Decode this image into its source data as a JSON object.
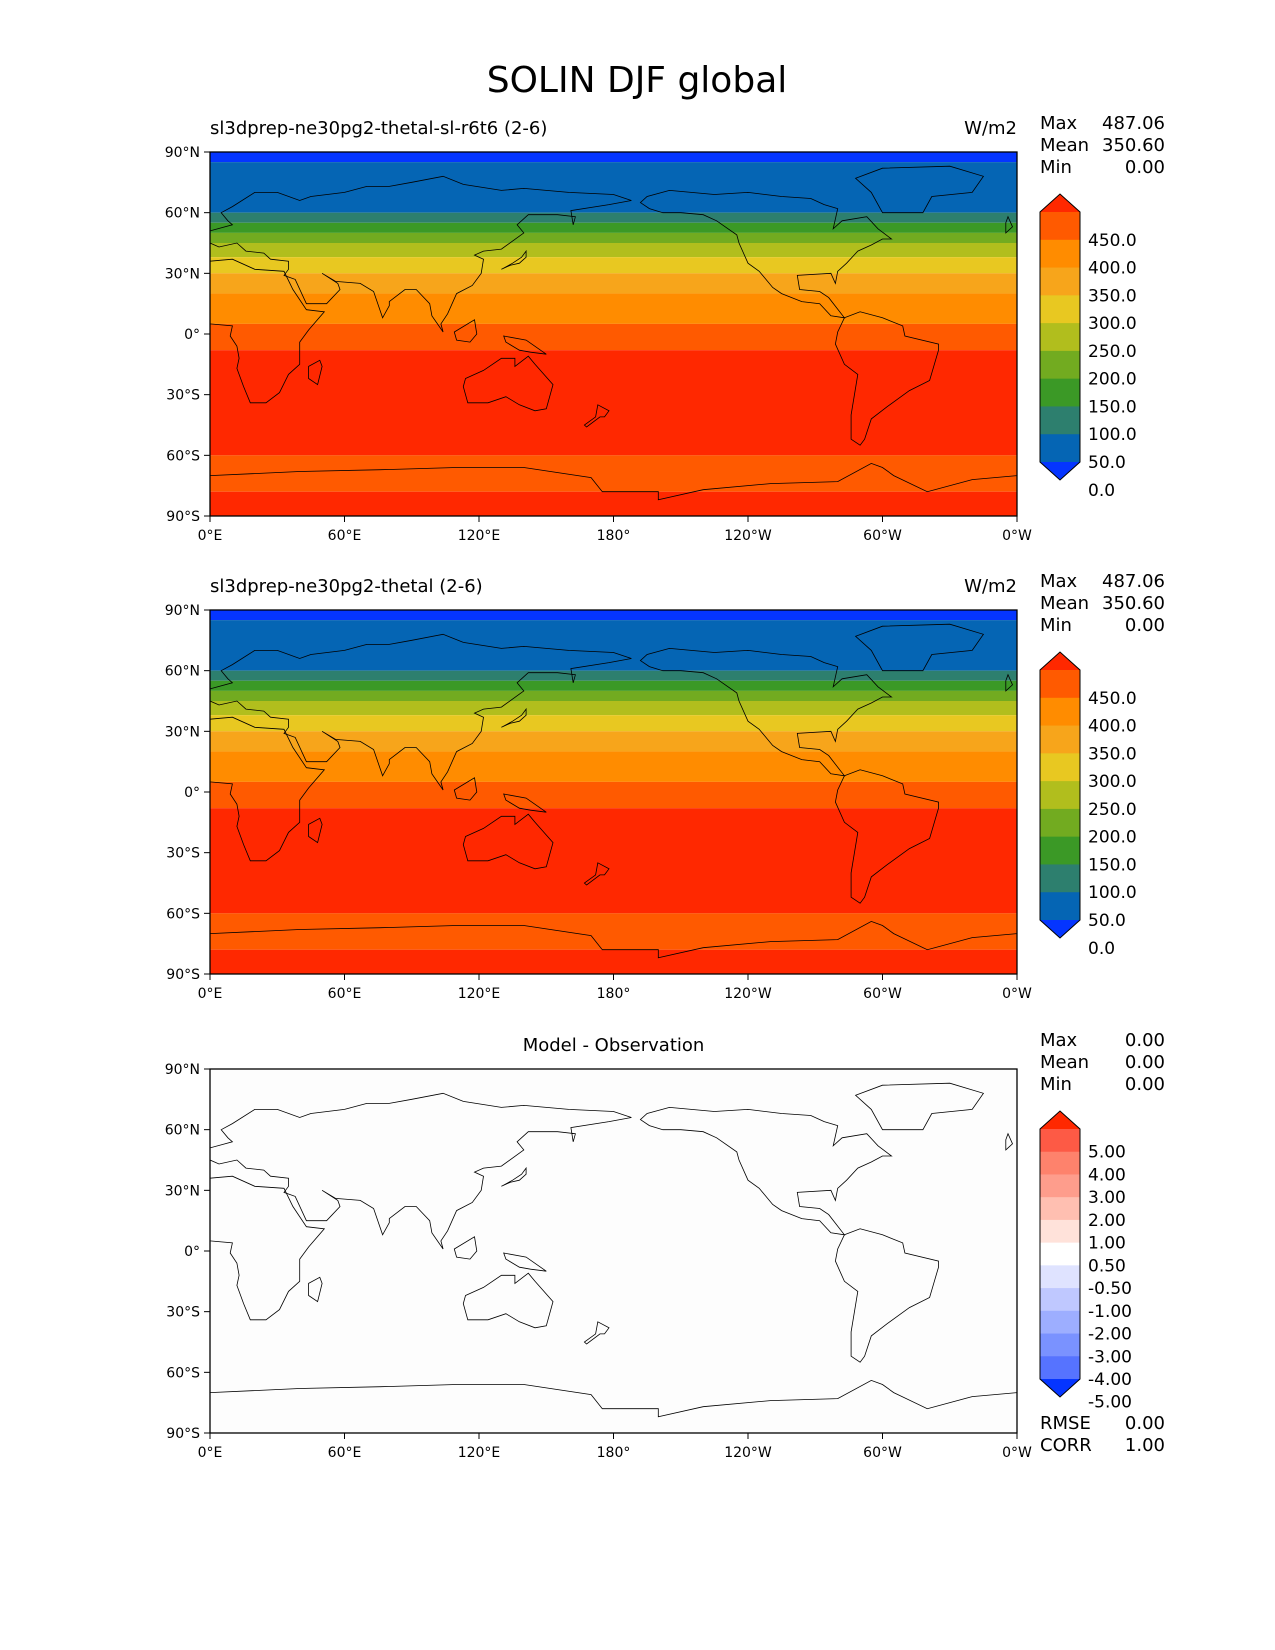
{
  "figure": {
    "title": "SOLIN DJF global",
    "x_ticks": [
      "0°E",
      "60°E",
      "120°E",
      "180°",
      "120°W",
      "60°W",
      "0°W"
    ],
    "y_ticks": [
      "90°N",
      "60°N",
      "30°N",
      "0°",
      "30°S",
      "60°S",
      "90°S"
    ]
  },
  "panels": [
    {
      "id": "model-1",
      "left_title": "sl3dprep-ne30pg2-thetal-sl-r6t6 (2-6)",
      "center_title": "",
      "units": "W/m2",
      "stats": [
        {
          "label": "Max",
          "value": "487.06"
        },
        {
          "label": "Mean",
          "value": "350.60"
        },
        {
          "label": "Min",
          "value": "0.00"
        }
      ],
      "bottom_stats": [],
      "colorbar": {
        "labels": [
          "450.0",
          "400.0",
          "350.0",
          "300.0",
          "250.0",
          "200.0",
          "150.0",
          "100.0",
          "50.0",
          "0.0"
        ],
        "colors": [
          "#ff2800",
          "#ff5a00",
          "#ff8c00",
          "#f7a51b",
          "#e8c821",
          "#b1be1d",
          "#72ab20",
          "#3b9926",
          "#2d7f6e",
          "#0565b4",
          "#0535ff"
        ]
      },
      "field": {
        "type": "zonal_bands",
        "bands": [
          {
            "lat_max": 90,
            "lat_min": 85,
            "color": "#0535ff"
          },
          {
            "lat_max": 85,
            "lat_min": 60,
            "color": "#0565b4"
          },
          {
            "lat_max": 60,
            "lat_min": 55,
            "color": "#2d7f6e"
          },
          {
            "lat_max": 55,
            "lat_min": 50,
            "color": "#3b9926"
          },
          {
            "lat_max": 50,
            "lat_min": 45,
            "color": "#72ab20"
          },
          {
            "lat_max": 45,
            "lat_min": 38,
            "color": "#b1be1d"
          },
          {
            "lat_max": 38,
            "lat_min": 30,
            "color": "#e8c821"
          },
          {
            "lat_max": 30,
            "lat_min": 20,
            "color": "#f7a51b"
          },
          {
            "lat_max": 20,
            "lat_min": 5,
            "color": "#ff8c00"
          },
          {
            "lat_max": 5,
            "lat_min": -8,
            "color": "#ff5a00"
          },
          {
            "lat_max": -8,
            "lat_min": -60,
            "color": "#ff2800"
          },
          {
            "lat_max": -60,
            "lat_min": -78,
            "color": "#ff5a00"
          },
          {
            "lat_max": -78,
            "lat_min": -90,
            "color": "#ff2800"
          }
        ]
      }
    },
    {
      "id": "model-2",
      "left_title": "sl3dprep-ne30pg2-thetal (2-6)",
      "center_title": "",
      "units": "W/m2",
      "stats": [
        {
          "label": "Max",
          "value": "487.06"
        },
        {
          "label": "Mean",
          "value": "350.60"
        },
        {
          "label": "Min",
          "value": "0.00"
        }
      ],
      "bottom_stats": [],
      "colorbar": {
        "labels": [
          "450.0",
          "400.0",
          "350.0",
          "300.0",
          "250.0",
          "200.0",
          "150.0",
          "100.0",
          "50.0",
          "0.0"
        ],
        "colors": [
          "#ff2800",
          "#ff5a00",
          "#ff8c00",
          "#f7a51b",
          "#e8c821",
          "#b1be1d",
          "#72ab20",
          "#3b9926",
          "#2d7f6e",
          "#0565b4",
          "#0535ff"
        ]
      },
      "field": {
        "type": "zonal_bands",
        "bands": [
          {
            "lat_max": 90,
            "lat_min": 85,
            "color": "#0535ff"
          },
          {
            "lat_max": 85,
            "lat_min": 60,
            "color": "#0565b4"
          },
          {
            "lat_max": 60,
            "lat_min": 55,
            "color": "#2d7f6e"
          },
          {
            "lat_max": 55,
            "lat_min": 50,
            "color": "#3b9926"
          },
          {
            "lat_max": 50,
            "lat_min": 45,
            "color": "#72ab20"
          },
          {
            "lat_max": 45,
            "lat_min": 38,
            "color": "#b1be1d"
          },
          {
            "lat_max": 38,
            "lat_min": 30,
            "color": "#e8c821"
          },
          {
            "lat_max": 30,
            "lat_min": 20,
            "color": "#f7a51b"
          },
          {
            "lat_max": 20,
            "lat_min": 5,
            "color": "#ff8c00"
          },
          {
            "lat_max": 5,
            "lat_min": -8,
            "color": "#ff5a00"
          },
          {
            "lat_max": -8,
            "lat_min": -60,
            "color": "#ff2800"
          },
          {
            "lat_max": -60,
            "lat_min": -78,
            "color": "#ff5a00"
          },
          {
            "lat_max": -78,
            "lat_min": -90,
            "color": "#ff2800"
          }
        ]
      }
    },
    {
      "id": "difference",
      "left_title": "",
      "center_title": "Model - Observation",
      "units": "",
      "stats": [
        {
          "label": "Max",
          "value": "0.00"
        },
        {
          "label": "Mean",
          "value": "0.00"
        },
        {
          "label": "Min",
          "value": "0.00"
        }
      ],
      "bottom_stats": [
        {
          "label": "RMSE",
          "value": "0.00"
        },
        {
          "label": "CORR",
          "value": "1.00"
        }
      ],
      "colorbar": {
        "labels": [
          "5.00",
          "4.00",
          "3.00",
          "2.00",
          "1.00",
          "0.50",
          "-0.50",
          "-1.00",
          "-2.00",
          "-3.00",
          "-4.00",
          "-5.00"
        ],
        "colors": [
          "#ff2800",
          "#fd5a45",
          "#fe826c",
          "#fe9d8c",
          "#ffbfb1",
          "#ffe2da",
          "#ffffff",
          "#dfe3ff",
          "#bfc8ff",
          "#9daeff",
          "#7a92ff",
          "#5673ff",
          "#0535ff"
        ]
      },
      "field": {
        "type": "zonal_bands",
        "bands": [
          {
            "lat_max": 90,
            "lat_min": -90,
            "color": "#fdfdfd"
          }
        ]
      }
    }
  ]
}
